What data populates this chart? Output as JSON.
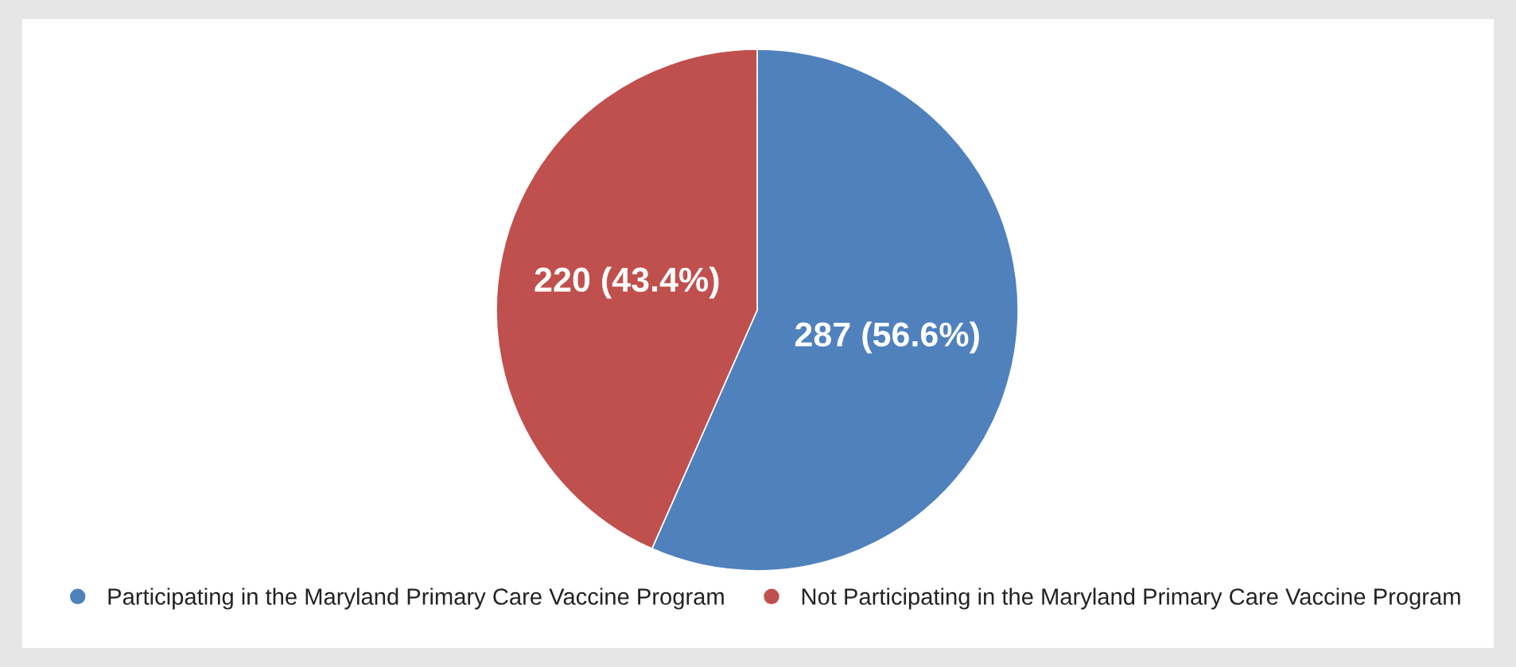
{
  "chart_data": {
    "type": "pie",
    "categories": [
      "Participating in the Maryland Primary Care Vaccine Program",
      "Not Participating in the Maryland Primary Care Vaccine Program"
    ],
    "values": [
      287,
      220
    ],
    "colors": [
      "#4f81bd",
      "#c0504d"
    ],
    "value_labels": [
      "287 (56.6%)",
      "220 (43.4%)"
    ],
    "legend": "bottom"
  }
}
